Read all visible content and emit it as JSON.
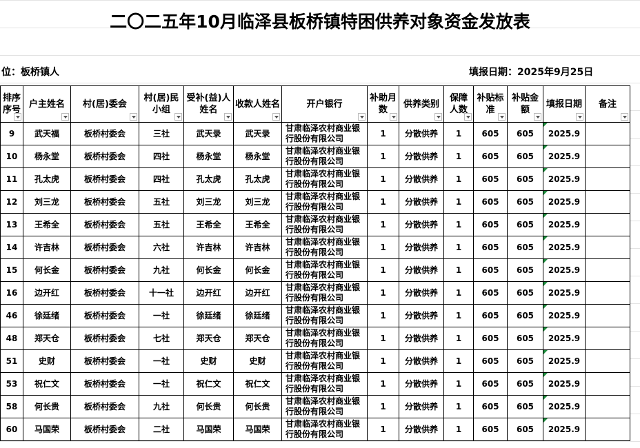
{
  "title": "二〇二五年10月临泽县板桥镇特困供养对象资金发放表",
  "info": {
    "unit": "位：板桥镇人",
    "date": "填报日期：2025年9月25日"
  },
  "table": {
    "columns": [
      "排序序号",
      "户主姓名",
      "村(居)委会",
      "村(居)民小组",
      "受补(益)人姓名",
      "收款人姓名",
      "开户银行",
      "补助月数",
      "供养类别",
      "保障人数",
      "补贴标准",
      "补贴金额",
      "填报日期",
      "备注"
    ],
    "rows": [
      [
        "9",
        "武天福",
        "板桥村委会",
        "三社",
        "武天录",
        "武天录",
        "甘肃临泽农村商业银行股份有限公司",
        "1",
        "分散供养",
        "1",
        "605",
        "605",
        "2025.9",
        ""
      ],
      [
        "10",
        "杨永堂",
        "板桥村委会",
        "四社",
        "杨永堂",
        "杨永堂",
        "甘肃临泽农村商业银行股份有限公司",
        "1",
        "分散供养",
        "1",
        "605",
        "605",
        "2025.9",
        ""
      ],
      [
        "11",
        "孔太虎",
        "板桥村委会",
        "四社",
        "孔太虎",
        "孔太虎",
        "甘肃临泽农村商业银行股份有限公司",
        "1",
        "分散供养",
        "1",
        "605",
        "605",
        "2025.9",
        ""
      ],
      [
        "12",
        "刘三龙",
        "板桥村委会",
        "五社",
        "刘三龙",
        "刘三龙",
        "甘肃临泽农村商业银行股份有限公司",
        "1",
        "分散供养",
        "1",
        "605",
        "605",
        "2025.9",
        ""
      ],
      [
        "13",
        "王希全",
        "板桥村委会",
        "五社",
        "王希全",
        "王希全",
        "甘肃临泽农村商业银行股份有限公司",
        "1",
        "分散供养",
        "1",
        "605",
        "605",
        "2025.9",
        ""
      ],
      [
        "14",
        "许吉林",
        "板桥村委会",
        "六社",
        "许吉林",
        "许吉林",
        "甘肃临泽农村商业银行股份有限公司",
        "1",
        "分散供养",
        "1",
        "605",
        "605",
        "2025.9",
        ""
      ],
      [
        "15",
        "何长金",
        "板桥村委会",
        "九社",
        "何长金",
        "何长金",
        "甘肃临泽农村商业银行股份有限公司",
        "1",
        "分散供养",
        "1",
        "605",
        "605",
        "2025.9",
        ""
      ],
      [
        "16",
        "边开红",
        "板桥村委会",
        "十一社",
        "边开红",
        "边开红",
        "甘肃临泽农村商业银行股份有限公司",
        "1",
        "分散供养",
        "1",
        "605",
        "605",
        "2025.9",
        ""
      ],
      [
        "46",
        "徐廷绪",
        "板桥村委会",
        "一社",
        "徐廷绪",
        "徐廷绪",
        "甘肃临泽农村商业银行股份有限公司",
        "1",
        "分散供养",
        "1",
        "605",
        "605",
        "2025.9",
        ""
      ],
      [
        "48",
        "郑天仓",
        "板桥村委会",
        "七社",
        "郑天仓",
        "郑天仓",
        "甘肃临泽农村商业银行股份有限公司",
        "1",
        "分散供养",
        "1",
        "605",
        "605",
        "2025.9",
        ""
      ],
      [
        "51",
        "史财",
        "板桥村委会",
        "一社",
        "史财",
        "史财",
        "甘肃临泽农村商业银行股份有限公司",
        "1",
        "分散供养",
        "1",
        "605",
        "605",
        "2025.9",
        ""
      ],
      [
        "53",
        "祝仁文",
        "板桥村委会",
        "一社",
        "祝仁文",
        "祝仁文",
        "甘肃临泽农村商业银行股份有限公司",
        "1",
        "分散供养",
        "1",
        "605",
        "605",
        "2025.9",
        ""
      ],
      [
        "58",
        "何长贵",
        "板桥村委会",
        "九社",
        "何长贵",
        "何长贵",
        "甘肃临泽农村商业银行股份有限公司",
        "1",
        "分散供养",
        "1",
        "605",
        "605",
        "2025.9",
        ""
      ],
      [
        "60",
        "马国荣",
        "板桥村委会",
        "二社",
        "马国荣",
        "马国荣",
        "甘肃临泽农村商业银行股份有限公司",
        "1",
        "分散供养",
        "1",
        "605",
        "605",
        "2025.9",
        ""
      ]
    ]
  }
}
